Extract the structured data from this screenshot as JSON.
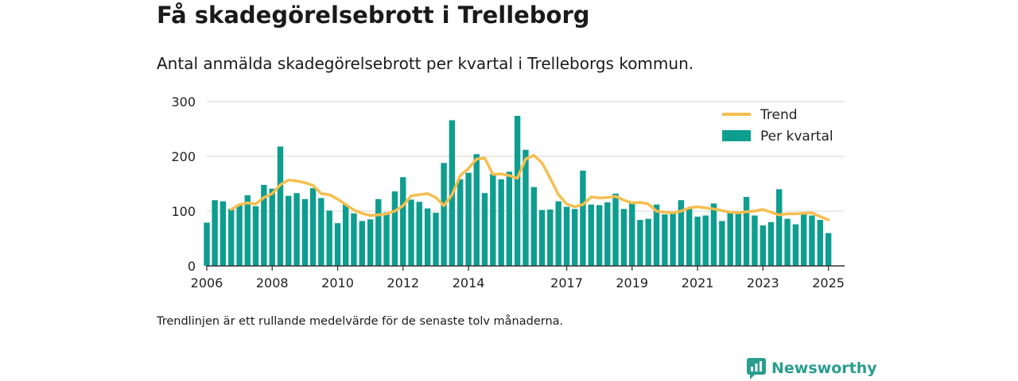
{
  "header": {
    "title": "Få skadegörelsebrott i Trelleborg",
    "subtitle": "Antal anmälda skadegörelsebrott per kvartal i Trelleborgs kommun."
  },
  "footnote": "Trendlinjen är ett rullande medelvärde för de senaste tolv månaderna.",
  "brand": {
    "name": "Newsworthy",
    "icon": "newsworthy-logo-icon"
  },
  "colors": {
    "bar": "#0e9e90",
    "trend": "#f6be4f",
    "axis": "#333333",
    "grid": "#dddddd"
  },
  "chart_data": {
    "type": "bar",
    "ylim": [
      0,
      300
    ],
    "yticks": [
      0,
      100,
      200,
      300
    ],
    "x_range": [
      "2006-01-01",
      "2025-07-01"
    ],
    "xticks": [
      {
        "date": "2006-01-01",
        "label": "2006"
      },
      {
        "date": "2008-01-01",
        "label": "2008"
      },
      {
        "date": "2010-01-01",
        "label": "2010"
      },
      {
        "date": "2012-01-01",
        "label": "2012"
      },
      {
        "date": "2014-01-01",
        "label": "2014"
      },
      {
        "date": "2017-01-01",
        "label": "2017"
      },
      {
        "date": "2019-01-01",
        "label": "2019"
      },
      {
        "date": "2021-01-01",
        "label": "2021"
      },
      {
        "date": "2023-01-01",
        "label": "2023"
      },
      {
        "date": "2025-01-01",
        "label": "2025"
      }
    ],
    "legend_position": "top-right",
    "legend": [
      {
        "label": "Trend",
        "kind": "line"
      },
      {
        "label": "Per kvartal",
        "kind": "bar"
      }
    ],
    "series": [
      {
        "name": "Per kvartal",
        "type": "bar",
        "x": [
          "2006-01-01",
          "2006-04-01",
          "2006-07-01",
          "2006-10-01",
          "2007-01-01",
          "2007-04-01",
          "2007-07-01",
          "2007-10-01",
          "2008-01-01",
          "2008-04-01",
          "2008-07-01",
          "2008-10-01",
          "2009-01-01",
          "2009-04-01",
          "2009-07-01",
          "2009-10-01",
          "2010-01-01",
          "2010-04-01",
          "2010-07-01",
          "2010-10-01",
          "2011-01-01",
          "2011-04-01",
          "2011-07-01",
          "2011-10-01",
          "2012-01-01",
          "2012-04-01",
          "2012-07-01",
          "2012-10-01",
          "2013-01-01",
          "2013-04-01",
          "2013-07-01",
          "2013-10-01",
          "2014-01-01",
          "2014-04-01",
          "2014-07-01",
          "2014-10-01",
          "2015-01-01",
          "2015-04-01",
          "2015-07-01",
          "2015-10-01",
          "2016-01-01",
          "2016-04-01",
          "2016-07-01",
          "2016-10-01",
          "2017-01-01",
          "2017-04-01",
          "2017-07-01",
          "2017-10-01",
          "2018-01-01",
          "2018-04-01",
          "2018-07-01",
          "2018-10-01",
          "2019-01-01",
          "2019-04-01",
          "2019-07-01",
          "2019-10-01",
          "2020-01-01",
          "2020-04-01",
          "2020-07-01",
          "2020-10-01",
          "2021-01-01",
          "2021-04-01",
          "2021-07-01",
          "2021-10-01",
          "2022-01-01",
          "2022-04-01",
          "2022-07-01",
          "2022-10-01",
          "2023-01-01",
          "2023-04-01",
          "2023-07-01",
          "2023-10-01",
          "2024-01-01",
          "2024-04-01",
          "2024-07-01",
          "2024-10-01",
          "2025-01-01"
        ],
        "values": [
          79,
          120,
          118,
          104,
          112,
          129,
          109,
          148,
          141,
          218,
          128,
          133,
          122,
          142,
          124,
          101,
          78,
          112,
          96,
          82,
          85,
          122,
          98,
          136,
          162,
          121,
          117,
          105,
          97,
          188,
          266,
          158,
          170,
          204,
          133,
          168,
          158,
          172,
          274,
          212,
          144,
          102,
          103,
          118,
          108,
          104,
          174,
          112,
          111,
          116,
          132,
          104,
          116,
          84,
          86,
          112,
          94,
          96,
          120,
          104,
          90,
          92,
          114,
          82,
          98,
          98,
          126,
          92,
          74,
          80,
          140,
          86,
          76,
          94,
          92,
          84,
          60
        ]
      },
      {
        "name": "Trend",
        "type": "line",
        "x": [
          "2006-10-01",
          "2007-01-01",
          "2007-04-01",
          "2007-07-01",
          "2007-10-01",
          "2008-01-01",
          "2008-04-01",
          "2008-07-01",
          "2008-10-01",
          "2009-01-01",
          "2009-04-01",
          "2009-07-01",
          "2009-10-01",
          "2010-01-01",
          "2010-04-01",
          "2010-07-01",
          "2010-10-01",
          "2011-01-01",
          "2011-04-01",
          "2011-07-01",
          "2011-10-01",
          "2012-01-01",
          "2012-04-01",
          "2012-07-01",
          "2012-10-01",
          "2013-01-01",
          "2013-04-01",
          "2013-07-01",
          "2013-10-01",
          "2014-01-01",
          "2014-04-01",
          "2014-07-01",
          "2014-10-01",
          "2015-01-01",
          "2015-04-01",
          "2015-07-01",
          "2015-10-01",
          "2016-01-01",
          "2016-04-01",
          "2016-07-01",
          "2016-10-01",
          "2017-01-01",
          "2017-04-01",
          "2017-07-01",
          "2017-10-01",
          "2018-01-01",
          "2018-04-01",
          "2018-07-01",
          "2018-10-01",
          "2019-01-01",
          "2019-04-01",
          "2019-07-01",
          "2019-10-01",
          "2020-01-01",
          "2020-04-01",
          "2020-07-01",
          "2020-10-01",
          "2021-01-01",
          "2021-04-01",
          "2021-07-01",
          "2021-10-01",
          "2022-01-01",
          "2022-04-01",
          "2022-07-01",
          "2022-10-01",
          "2023-01-01",
          "2023-04-01",
          "2023-07-01",
          "2023-10-01",
          "2024-01-01",
          "2024-04-01",
          "2024-07-01",
          "2024-10-01",
          "2025-01-01"
        ],
        "values": [
          103,
          112,
          115,
          113,
          125,
          132,
          148,
          157,
          155,
          152,
          147,
          132,
          130,
          122,
          112,
          102,
          96,
          92,
          93,
          95,
          100,
          110,
          128,
          130,
          132,
          125,
          110,
          130,
          165,
          178,
          195,
          197,
          167,
          168,
          165,
          160,
          195,
          202,
          188,
          160,
          130,
          113,
          108,
          112,
          126,
          124,
          125,
          127,
          120,
          115,
          116,
          113,
          100,
          98,
          97,
          100,
          106,
          108,
          106,
          104,
          101,
          98,
          97,
          99,
          100,
          103,
          98,
          93,
          95,
          95,
          96,
          97,
          90,
          84
        ]
      }
    ]
  }
}
